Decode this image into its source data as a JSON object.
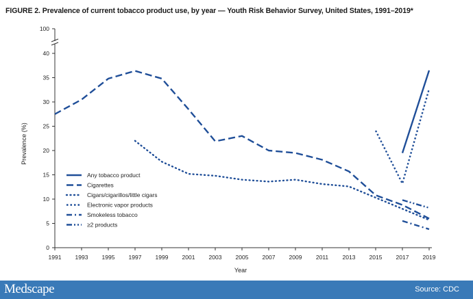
{
  "title": "FIGURE 2. Prevalence of current tobacco product use, by year — Youth Risk Behavior Survey, United States, 1991–2019*",
  "footer": {
    "brand": "Medscape",
    "source": "Source: CDC",
    "color": "#3a7ab8"
  },
  "chart_data": {
    "type": "line",
    "xlabel": "Year",
    "ylabel": "Prevalence (%)",
    "xlim": [
      1991,
      2019
    ],
    "ylim": [
      0,
      40
    ],
    "y_break_top": 100,
    "x_ticks": [
      1991,
      1993,
      1995,
      1997,
      1999,
      2001,
      2003,
      2005,
      2007,
      2009,
      2011,
      2013,
      2015,
      2017,
      2019
    ],
    "y_ticks": [
      0,
      5,
      10,
      15,
      20,
      25,
      30,
      35,
      40,
      100
    ],
    "legend_position": "left",
    "line_color": "#1f4e98",
    "series": [
      {
        "name": "Any tobacco product",
        "style": "solid",
        "points": [
          [
            2017,
            19.5
          ],
          [
            2019,
            36.5
          ]
        ]
      },
      {
        "name": "Cigarettes",
        "style": "dash",
        "points": [
          [
            1991,
            27.5
          ],
          [
            1993,
            30.5
          ],
          [
            1995,
            34.8
          ],
          [
            1997,
            36.4
          ],
          [
            1999,
            34.8
          ],
          [
            2001,
            28.5
          ],
          [
            2003,
            21.9
          ],
          [
            2005,
            23.0
          ],
          [
            2007,
            20.0
          ],
          [
            2009,
            19.5
          ],
          [
            2011,
            18.1
          ],
          [
            2013,
            15.7
          ],
          [
            2015,
            10.8
          ],
          [
            2017,
            8.8
          ],
          [
            2019,
            6.0
          ]
        ]
      },
      {
        "name": "Cigars/cigarillos/little cigars",
        "style": "dot",
        "points": [
          [
            1997,
            22.0
          ],
          [
            1999,
            17.7
          ],
          [
            2001,
            15.2
          ],
          [
            2003,
            14.8
          ],
          [
            2005,
            14.0
          ],
          [
            2007,
            13.6
          ],
          [
            2009,
            14.0
          ],
          [
            2011,
            13.1
          ],
          [
            2013,
            12.6
          ],
          [
            2015,
            10.3
          ],
          [
            2017,
            8.0
          ],
          [
            2019,
            5.7
          ]
        ]
      },
      {
        "name": "Electronic vapor products",
        "style": "densedot",
        "points": [
          [
            2015,
            24.1
          ],
          [
            2017,
            13.2
          ],
          [
            2019,
            32.7
          ]
        ]
      },
      {
        "name": "Smokeless tobacco",
        "style": "dashdot",
        "points": [
          [
            2017,
            5.5
          ],
          [
            2019,
            3.8
          ]
        ]
      },
      {
        "name": "≥2 products",
        "style": "dashdotdot",
        "points": [
          [
            2017,
            9.8
          ],
          [
            2019,
            8.2
          ]
        ]
      }
    ]
  }
}
